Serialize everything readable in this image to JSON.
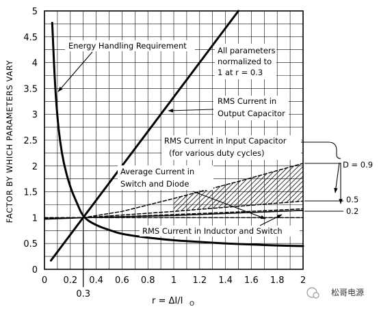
{
  "chart_data": {
    "type": "line",
    "xlabel_main": "r = ΔI/I",
    "xlabel_sub": "O",
    "ylabel": "FACTOR BY WHICH PARAMETERS VARY",
    "xlim": [
      0,
      2
    ],
    "ylim": [
      0,
      5
    ],
    "grid": true,
    "x_ticks": [
      "0",
      "0.2",
      "0.4",
      "0.6",
      "0.8",
      "1",
      "1.2",
      "1.4",
      "1.6",
      "1.8",
      "2"
    ],
    "y_ticks": [
      "0",
      "0.5",
      "1",
      "1.5",
      "2",
      "2.5",
      "3",
      "3.5",
      "4",
      "4.5",
      "5"
    ],
    "extra_x_tick": {
      "value": 0.3,
      "label": "0.3"
    },
    "series": [
      {
        "key": "energy",
        "style": "solid-thick",
        "x": [
          0.06,
          0.08,
          0.1,
          0.12,
          0.15,
          0.2,
          0.25,
          0.3,
          0.4,
          0.5,
          0.6,
          0.8,
          1.0,
          1.2,
          1.4,
          1.6,
          1.8,
          2.0
        ],
        "y": [
          4.77,
          3.62,
          2.94,
          2.48,
          2.03,
          1.58,
          1.29,
          1.0,
          0.85,
          0.76,
          0.68,
          0.61,
          0.56,
          0.53,
          0.5,
          0.48,
          0.46,
          0.45
        ]
      },
      {
        "key": "output_cap",
        "style": "solid-thick",
        "x": [
          0.05,
          1.5
        ],
        "y": [
          0.17,
          5.0
        ]
      },
      {
        "key": "inductor_switch",
        "style": "solid-thin",
        "x": [
          0.0,
          0.3,
          1.0,
          2.0
        ],
        "y": [
          0.97,
          1.0,
          1.04,
          1.14
        ]
      },
      {
        "key": "avg_current",
        "style": "dashed",
        "x": [
          0.0,
          2.0
        ],
        "y": [
          1.0,
          1.0
        ]
      },
      {
        "key": "input_cap_d09",
        "style": "dashed",
        "x": [
          0.0,
          0.3,
          0.6,
          1.0,
          1.5,
          2.0
        ],
        "y": [
          0.98,
          1.0,
          1.12,
          1.37,
          1.7,
          2.05
        ]
      },
      {
        "key": "input_cap_d05",
        "style": "dashed",
        "x": [
          0.0,
          0.3,
          0.6,
          1.0,
          1.5,
          2.0
        ],
        "y": [
          0.99,
          1.0,
          1.05,
          1.12,
          1.22,
          1.32
        ]
      },
      {
        "key": "input_cap_d02",
        "style": "dashed",
        "x": [
          0.0,
          0.3,
          0.6,
          1.0,
          1.5,
          2.0
        ],
        "y": [
          0.99,
          1.0,
          1.02,
          1.06,
          1.11,
          1.17
        ]
      }
    ],
    "hatched_region": {
      "x_from": 1.0,
      "x_to": 2.0,
      "upper_key": "input_cap_d09",
      "lower_key": "input_cap_d05"
    },
    "annotations": {
      "energy": "Energy Handling Requirement",
      "normalized_l1": "All parameters",
      "normalized_l2": "normalized to",
      "normalized_l3": "1 at r = 0.3",
      "output_cap_l1": "RMS Current in",
      "output_cap_l2": "Output Capacitor",
      "input_cap_l1": "RMS Current in Input Capacitor",
      "input_cap_l2": "(for various duty cycles)",
      "avg_l1": "Average Current in",
      "avg_l2": "Switch and Diode",
      "inductor": "RMS Current in Inductor and Switch",
      "d09": "D = 0.9",
      "d05": "0.5",
      "d02": "0.2"
    },
    "watermark": "松哥电源"
  }
}
